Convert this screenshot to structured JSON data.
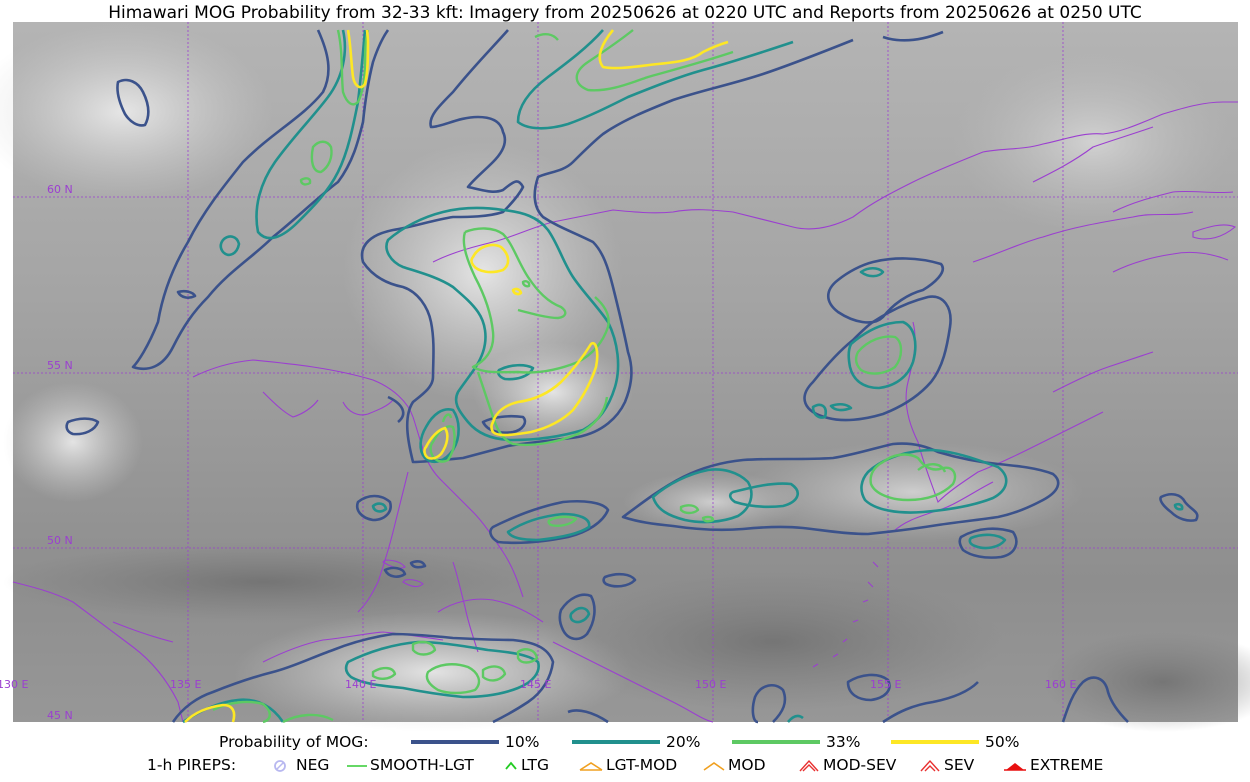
{
  "title": "Himawari MOG Probability from 32-33 kft: Imagery from 20250626 at 0220 UTC and Reports from 20250626 at 0250 UTC",
  "map": {
    "lat_labels": [
      "60 N",
      "55 N",
      "50 N",
      "45 N"
    ],
    "lon_labels": [
      "130 E",
      "135 E",
      "140 E",
      "145 E",
      "150 E",
      "155 E",
      "160 E"
    ],
    "border_color": "#9b3fd0"
  },
  "legend": {
    "probability_title": "Probability of MOG:",
    "levels": [
      {
        "label": "10%",
        "color": "#3b528b"
      },
      {
        "label": "20%",
        "color": "#21908d"
      },
      {
        "label": "33%",
        "color": "#5dc963"
      },
      {
        "label": "50%",
        "color": "#fde725"
      }
    ],
    "pirep_title": "1-h PIREPS:",
    "pireps": [
      {
        "label": "NEG",
        "icon": "neg-circle-icon",
        "color": "#b8b8f0"
      },
      {
        "label": "SMOOTH-LGT",
        "icon": "smooth-line-icon",
        "color": "#33cc33"
      },
      {
        "label": "LTG",
        "icon": "ltg-chevron-icon",
        "color": "#22cc22"
      },
      {
        "label": "LGT-MOD",
        "icon": "lgt-mod-chevron-icon",
        "color": "#f0a020"
      },
      {
        "label": "MOD",
        "icon": "mod-chevron-icon",
        "color": "#f0a020"
      },
      {
        "label": "MOD-SEV",
        "icon": "mod-sev-chevron-icon",
        "color": "#e83030"
      },
      {
        "label": "SEV",
        "icon": "sev-chevron-icon",
        "color": "#e83030"
      },
      {
        "label": "EXTREME",
        "icon": "extreme-chevron-icon",
        "color": "#e81010"
      }
    ]
  }
}
